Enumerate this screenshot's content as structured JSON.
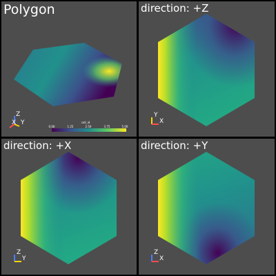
{
  "viewports": {
    "polygon": {
      "title": "Polygon"
    },
    "direction_z": {
      "title": "direction: +Z"
    },
    "direction_x": {
      "title": "direction: +X"
    },
    "direction_y": {
      "title": "direction: +Y"
    }
  },
  "axes": {
    "polygon": [
      "Z",
      "X",
      "Y"
    ],
    "direction_z": [
      "Y",
      "X"
    ],
    "direction_x": [
      "Z",
      "Y"
    ],
    "direction_y": [
      "Z",
      "X"
    ]
  },
  "scalar_bar": {
    "title": "cell_id",
    "ticks": [
      "0.00",
      "1.25",
      "2.50",
      "3.75",
      "5.00"
    ]
  },
  "colors": {
    "background": "#4d4d4d",
    "separator": "#000000",
    "viridis_dark": "#440154",
    "viridis_mid": "#21918c",
    "viridis_light": "#fde725",
    "axis_x": "#ff4d4d",
    "axis_y": "#ffd700",
    "axis_z": "#4d7dff"
  }
}
